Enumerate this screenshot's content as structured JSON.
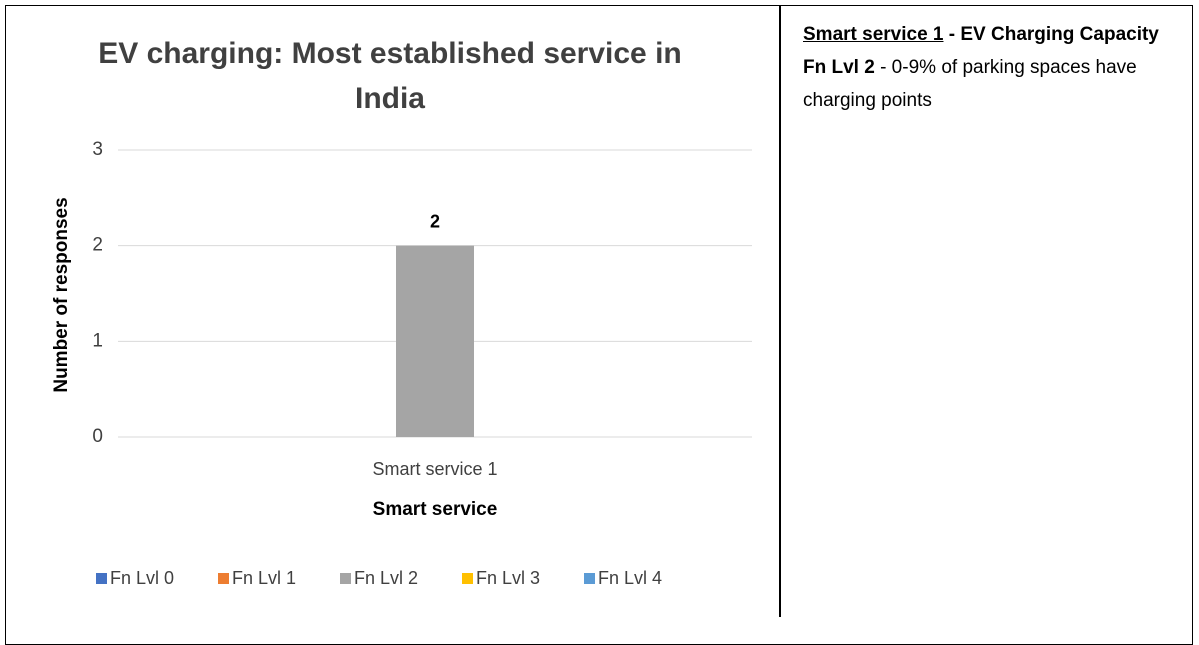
{
  "chart_data": {
    "type": "bar",
    "title": "EV charging: Most established service in India",
    "x_label": "Smart service",
    "y_label": "Number of responses",
    "categories": [
      "Smart service 1"
    ],
    "series": [
      {
        "name": "Fn Lvl 0",
        "color": "#4472c4",
        "values": [
          null
        ]
      },
      {
        "name": "Fn Lvl 1",
        "color": "#ed7d31",
        "values": [
          null
        ]
      },
      {
        "name": "Fn Lvl 2",
        "color": "#a5a5a5",
        "values": [
          2
        ]
      },
      {
        "name": "Fn Lvl 3",
        "color": "#ffc000",
        "values": [
          null
        ]
      },
      {
        "name": "Fn Lvl 4",
        "color": "#5b9bd5",
        "values": [
          null
        ]
      }
    ],
    "ylim": [
      0,
      3
    ],
    "yticks": [
      0,
      1,
      2,
      3
    ],
    "grid": true,
    "legend": "bottom",
    "data_labels": true
  },
  "side_note": {
    "heading": "Smart service 1",
    "heading_rest": "- EV Charging Capacity",
    "level": "Fn Lvl 2",
    "description": "- 0-9% of parking spaces have charging points"
  }
}
